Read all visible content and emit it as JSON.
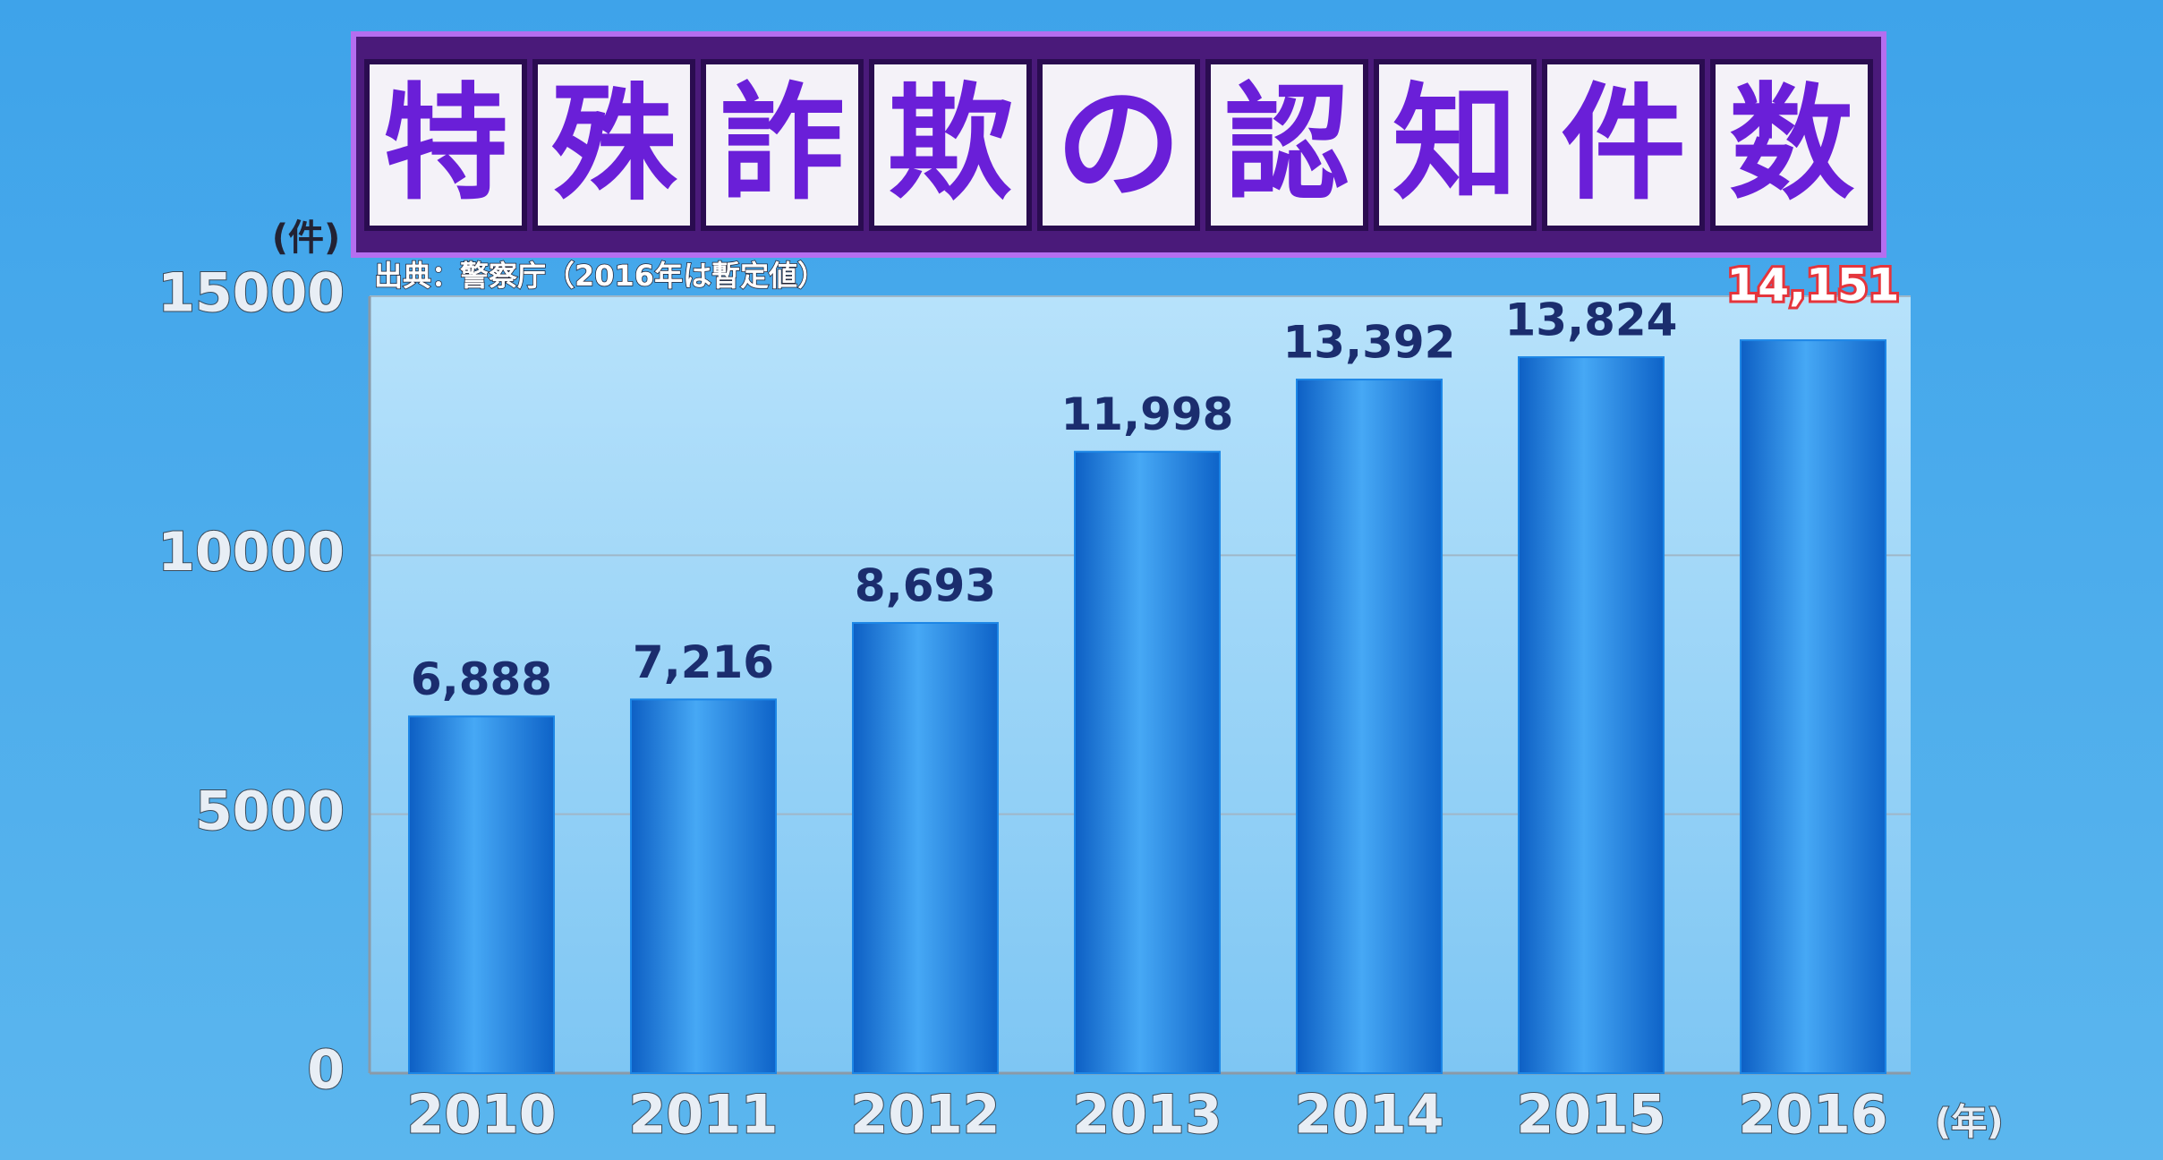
{
  "chart_data": {
    "type": "bar",
    "title": "特殊詐欺の認知件数",
    "source": "出典：警察庁（2016年は暫定値）",
    "y_label": "(件)",
    "x_label": "(年)",
    "categories": [
      "2010",
      "2011",
      "2012",
      "2013",
      "2014",
      "2015",
      "2016"
    ],
    "values": [
      6888,
      7216,
      8693,
      11998,
      13392,
      13824,
      14151
    ],
    "value_labels": [
      "6,888",
      "7,216",
      "8,693",
      "11,998",
      "13,392",
      "13,824",
      "14,151"
    ],
    "label_colors": [
      "#1b2d6e",
      "#1b2d6e",
      "#1b2d6e",
      "#1b2d6e",
      "#1b2d6e",
      "#1b2d6e",
      "#e5353c"
    ],
    "color": "#1c86e6",
    "ylim": [
      0,
      15000
    ],
    "yticks": [
      0,
      5000,
      10000,
      15000
    ],
    "grid": true
  }
}
